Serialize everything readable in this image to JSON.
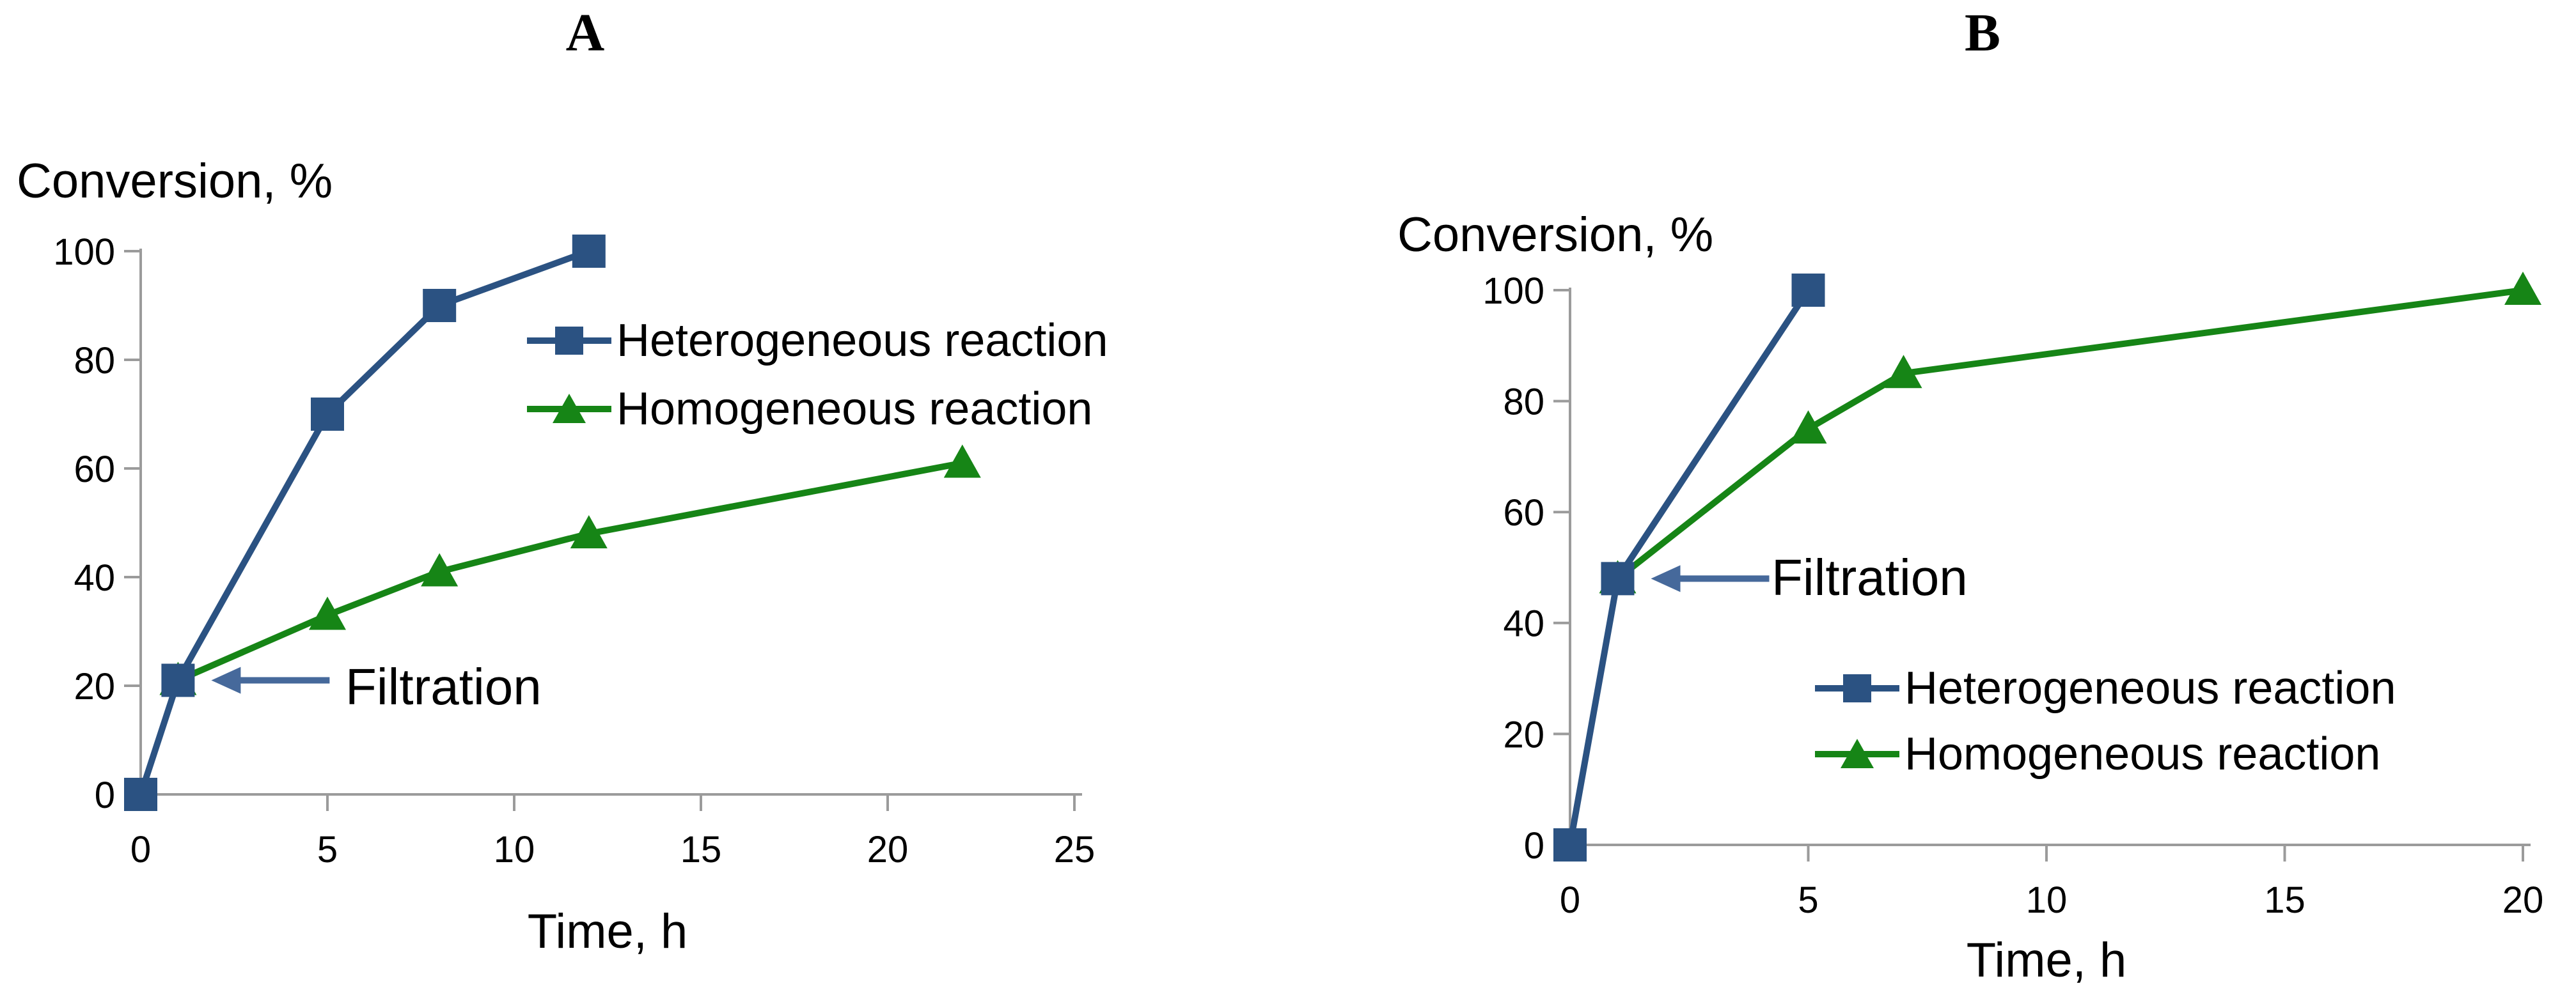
{
  "colors": {
    "heterogeneous_blue": "#2B5282",
    "homogeneous_green": "#168516",
    "arrow_blue": "#46699B",
    "axis_gray": "#9B9B9B",
    "text_black": "#000000"
  },
  "chart_data": [
    {
      "type": "line",
      "title": "A",
      "ylabel": "Conversion, %",
      "xlabel": "Time, h",
      "xlim": [
        0,
        25
      ],
      "ylim": [
        0,
        100
      ],
      "x_ticks": [
        0,
        5,
        10,
        15,
        20,
        25
      ],
      "y_ticks": [
        0,
        20,
        40,
        60,
        80,
        100
      ],
      "grid": false,
      "legend_position": "inside-right-upper",
      "annotation": {
        "text": "Filtration",
        "x": 1,
        "y": 21
      },
      "series": [
        {
          "name": "Heterogeneous reaction",
          "marker": "square",
          "color": "#2B5282",
          "points": [
            [
              0,
              0
            ],
            [
              1,
              21
            ],
            [
              5,
              70
            ],
            [
              8,
              90
            ],
            [
              12,
              100
            ]
          ]
        },
        {
          "name": "Homogeneous reaction",
          "marker": "triangle",
          "color": "#168516",
          "points": [
            [
              1,
              21
            ],
            [
              5,
              33
            ],
            [
              8,
              41
            ],
            [
              12,
              48
            ],
            [
              22,
              61
            ]
          ]
        }
      ]
    },
    {
      "type": "line",
      "title": "B",
      "ylabel": "Conversion, %",
      "xlabel": "Time, h",
      "xlim": [
        0,
        20
      ],
      "ylim": [
        0,
        100
      ],
      "x_ticks": [
        0,
        5,
        10,
        15,
        20
      ],
      "y_ticks": [
        0,
        20,
        40,
        60,
        80,
        100
      ],
      "grid": false,
      "legend_position": "inside-right-lower",
      "annotation": {
        "text": "Filtration",
        "x": 1,
        "y": 48
      },
      "series": [
        {
          "name": "Heterogeneous reaction",
          "marker": "square",
          "color": "#2B5282",
          "points": [
            [
              0,
              0
            ],
            [
              1,
              48
            ],
            [
              5,
              100
            ]
          ]
        },
        {
          "name": "Homogeneous reaction",
          "marker": "triangle",
          "color": "#168516",
          "points": [
            [
              1,
              48
            ],
            [
              5,
              75
            ],
            [
              7,
              85
            ],
            [
              20,
              100
            ]
          ]
        }
      ]
    }
  ]
}
